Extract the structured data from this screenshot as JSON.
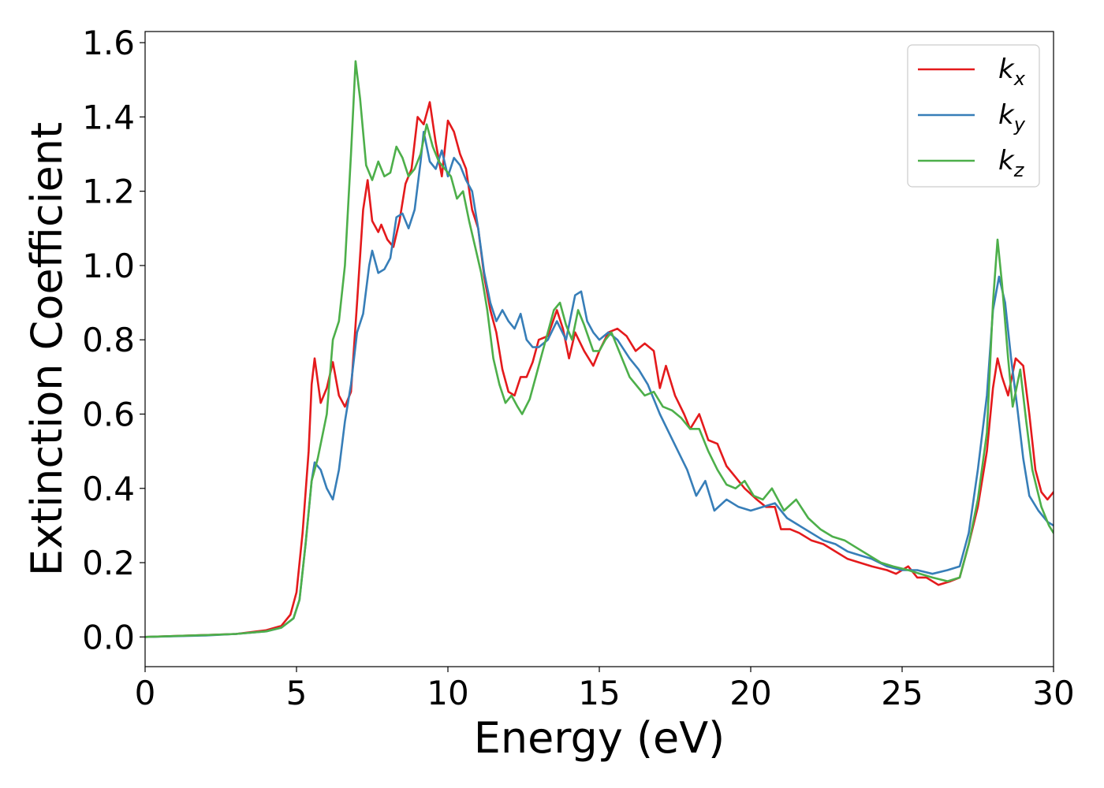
{
  "chart_data": {
    "type": "line",
    "xlabel": "Energy (eV)",
    "ylabel": "Extinction Coefficient",
    "xlim": [
      0,
      30
    ],
    "ylim": [
      -0.08,
      1.63
    ],
    "xticks": [
      0,
      5,
      10,
      15,
      20,
      25,
      30
    ],
    "xtick_labels": [
      "0",
      "5",
      "10",
      "15",
      "20",
      "25",
      "30"
    ],
    "yticks": [
      0.0,
      0.2,
      0.4,
      0.6,
      0.8,
      1.0,
      1.2,
      1.4,
      1.6
    ],
    "ytick_labels": [
      "0.0",
      "0.2",
      "0.4",
      "0.6",
      "0.8",
      "1.0",
      "1.2",
      "1.4",
      "1.6"
    ],
    "grid": false,
    "legend_position": "top-right",
    "series": [
      {
        "name": "k",
        "subscript": "x",
        "color": "#e41a1c",
        "points": [
          [
            0,
            0
          ],
          [
            2,
            0.005
          ],
          [
            3,
            0.008
          ],
          [
            4,
            0.018
          ],
          [
            4.5,
            0.03
          ],
          [
            4.8,
            0.06
          ],
          [
            5.0,
            0.12
          ],
          [
            5.2,
            0.28
          ],
          [
            5.4,
            0.5
          ],
          [
            5.5,
            0.68
          ],
          [
            5.6,
            0.75
          ],
          [
            5.8,
            0.63
          ],
          [
            6.0,
            0.67
          ],
          [
            6.2,
            0.74
          ],
          [
            6.4,
            0.65
          ],
          [
            6.6,
            0.62
          ],
          [
            6.8,
            0.66
          ],
          [
            7.0,
            0.9
          ],
          [
            7.2,
            1.15
          ],
          [
            7.35,
            1.23
          ],
          [
            7.5,
            1.12
          ],
          [
            7.7,
            1.09
          ],
          [
            7.8,
            1.11
          ],
          [
            8.0,
            1.07
          ],
          [
            8.2,
            1.05
          ],
          [
            8.4,
            1.12
          ],
          [
            8.6,
            1.22
          ],
          [
            8.8,
            1.26
          ],
          [
            9.0,
            1.4
          ],
          [
            9.2,
            1.38
          ],
          [
            9.4,
            1.44
          ],
          [
            9.6,
            1.33
          ],
          [
            9.8,
            1.24
          ],
          [
            10.0,
            1.39
          ],
          [
            10.2,
            1.36
          ],
          [
            10.4,
            1.3
          ],
          [
            10.6,
            1.26
          ],
          [
            10.8,
            1.15
          ],
          [
            11.0,
            1.1
          ],
          [
            11.2,
            0.97
          ],
          [
            11.4,
            0.88
          ],
          [
            11.6,
            0.82
          ],
          [
            11.8,
            0.72
          ],
          [
            12.0,
            0.66
          ],
          [
            12.2,
            0.65
          ],
          [
            12.4,
            0.7
          ],
          [
            12.6,
            0.7
          ],
          [
            12.8,
            0.74
          ],
          [
            13.0,
            0.8
          ],
          [
            13.3,
            0.81
          ],
          [
            13.6,
            0.88
          ],
          [
            13.8,
            0.83
          ],
          [
            14.0,
            0.75
          ],
          [
            14.2,
            0.82
          ],
          [
            14.5,
            0.77
          ],
          [
            14.8,
            0.73
          ],
          [
            15.0,
            0.77
          ],
          [
            15.3,
            0.82
          ],
          [
            15.6,
            0.83
          ],
          [
            15.9,
            0.81
          ],
          [
            16.2,
            0.77
          ],
          [
            16.5,
            0.79
          ],
          [
            16.8,
            0.77
          ],
          [
            17.0,
            0.67
          ],
          [
            17.2,
            0.73
          ],
          [
            17.5,
            0.65
          ],
          [
            17.8,
            0.6
          ],
          [
            18.0,
            0.56
          ],
          [
            18.3,
            0.6
          ],
          [
            18.6,
            0.53
          ],
          [
            18.9,
            0.52
          ],
          [
            19.2,
            0.46
          ],
          [
            19.5,
            0.43
          ],
          [
            19.8,
            0.4
          ],
          [
            20.2,
            0.37
          ],
          [
            20.5,
            0.35
          ],
          [
            20.8,
            0.35
          ],
          [
            21.0,
            0.29
          ],
          [
            21.3,
            0.29
          ],
          [
            21.6,
            0.28
          ],
          [
            22.0,
            0.26
          ],
          [
            22.4,
            0.25
          ],
          [
            22.8,
            0.23
          ],
          [
            23.2,
            0.21
          ],
          [
            23.6,
            0.2
          ],
          [
            24.0,
            0.19
          ],
          [
            24.5,
            0.18
          ],
          [
            24.8,
            0.17
          ],
          [
            25.2,
            0.19
          ],
          [
            25.5,
            0.16
          ],
          [
            25.8,
            0.16
          ],
          [
            26.2,
            0.14
          ],
          [
            26.6,
            0.15
          ],
          [
            26.9,
            0.16
          ],
          [
            27.2,
            0.25
          ],
          [
            27.5,
            0.35
          ],
          [
            27.8,
            0.5
          ],
          [
            28.0,
            0.67
          ],
          [
            28.15,
            0.75
          ],
          [
            28.3,
            0.7
          ],
          [
            28.5,
            0.65
          ],
          [
            28.75,
            0.75
          ],
          [
            29.0,
            0.73
          ],
          [
            29.2,
            0.6
          ],
          [
            29.4,
            0.45
          ],
          [
            29.6,
            0.39
          ],
          [
            29.8,
            0.37
          ],
          [
            30.0,
            0.39
          ]
        ]
      },
      {
        "name": "k",
        "subscript": "y",
        "color": "#377eb8",
        "points": [
          [
            0,
            0
          ],
          [
            2,
            0.004
          ],
          [
            3,
            0.008
          ],
          [
            4,
            0.015
          ],
          [
            4.5,
            0.025
          ],
          [
            4.9,
            0.05
          ],
          [
            5.1,
            0.1
          ],
          [
            5.3,
            0.25
          ],
          [
            5.5,
            0.42
          ],
          [
            5.6,
            0.47
          ],
          [
            5.8,
            0.45
          ],
          [
            6.0,
            0.4
          ],
          [
            6.2,
            0.37
          ],
          [
            6.4,
            0.45
          ],
          [
            6.6,
            0.58
          ],
          [
            6.8,
            0.68
          ],
          [
            7.0,
            0.82
          ],
          [
            7.2,
            0.87
          ],
          [
            7.4,
            1.0
          ],
          [
            7.5,
            1.04
          ],
          [
            7.7,
            0.98
          ],
          [
            7.9,
            0.99
          ],
          [
            8.1,
            1.02
          ],
          [
            8.3,
            1.13
          ],
          [
            8.5,
            1.14
          ],
          [
            8.7,
            1.1
          ],
          [
            8.9,
            1.15
          ],
          [
            9.1,
            1.28
          ],
          [
            9.2,
            1.36
          ],
          [
            9.4,
            1.28
          ],
          [
            9.6,
            1.26
          ],
          [
            9.8,
            1.31
          ],
          [
            10.0,
            1.24
          ],
          [
            10.2,
            1.29
          ],
          [
            10.4,
            1.27
          ],
          [
            10.6,
            1.23
          ],
          [
            10.8,
            1.2
          ],
          [
            11.0,
            1.1
          ],
          [
            11.2,
            0.98
          ],
          [
            11.4,
            0.9
          ],
          [
            11.6,
            0.85
          ],
          [
            11.8,
            0.88
          ],
          [
            12.0,
            0.85
          ],
          [
            12.2,
            0.83
          ],
          [
            12.4,
            0.87
          ],
          [
            12.6,
            0.8
          ],
          [
            12.8,
            0.78
          ],
          [
            13.0,
            0.78
          ],
          [
            13.3,
            0.8
          ],
          [
            13.6,
            0.85
          ],
          [
            13.9,
            0.8
          ],
          [
            14.2,
            0.92
          ],
          [
            14.4,
            0.93
          ],
          [
            14.6,
            0.85
          ],
          [
            14.8,
            0.82
          ],
          [
            15.0,
            0.8
          ],
          [
            15.3,
            0.82
          ],
          [
            15.6,
            0.8
          ],
          [
            16.0,
            0.75
          ],
          [
            16.3,
            0.72
          ],
          [
            16.6,
            0.68
          ],
          [
            16.8,
            0.64
          ],
          [
            17.0,
            0.6
          ],
          [
            17.3,
            0.55
          ],
          [
            17.6,
            0.5
          ],
          [
            17.9,
            0.45
          ],
          [
            18.2,
            0.38
          ],
          [
            18.5,
            0.42
          ],
          [
            18.8,
            0.34
          ],
          [
            19.2,
            0.37
          ],
          [
            19.6,
            0.35
          ],
          [
            20.0,
            0.34
          ],
          [
            20.4,
            0.35
          ],
          [
            20.8,
            0.36
          ],
          [
            21.2,
            0.32
          ],
          [
            21.6,
            0.3
          ],
          [
            22.0,
            0.28
          ],
          [
            22.4,
            0.26
          ],
          [
            22.8,
            0.25
          ],
          [
            23.2,
            0.23
          ],
          [
            23.6,
            0.22
          ],
          [
            24.0,
            0.21
          ],
          [
            24.5,
            0.19
          ],
          [
            25.0,
            0.18
          ],
          [
            25.5,
            0.18
          ],
          [
            26.0,
            0.17
          ],
          [
            26.5,
            0.18
          ],
          [
            26.9,
            0.19
          ],
          [
            27.2,
            0.28
          ],
          [
            27.5,
            0.45
          ],
          [
            27.8,
            0.65
          ],
          [
            28.0,
            0.88
          ],
          [
            28.2,
            0.97
          ],
          [
            28.4,
            0.9
          ],
          [
            28.6,
            0.75
          ],
          [
            28.8,
            0.62
          ],
          [
            29.0,
            0.48
          ],
          [
            29.2,
            0.38
          ],
          [
            29.5,
            0.34
          ],
          [
            29.8,
            0.31
          ],
          [
            30.0,
            0.3
          ]
        ]
      },
      {
        "name": "k",
        "subscript": "z",
        "color": "#4daf4a",
        "points": [
          [
            0,
            0
          ],
          [
            2,
            0.005
          ],
          [
            3,
            0.008
          ],
          [
            4,
            0.015
          ],
          [
            4.5,
            0.025
          ],
          [
            4.9,
            0.05
          ],
          [
            5.1,
            0.1
          ],
          [
            5.3,
            0.25
          ],
          [
            5.5,
            0.42
          ],
          [
            5.7,
            0.48
          ],
          [
            6.0,
            0.6
          ],
          [
            6.2,
            0.8
          ],
          [
            6.4,
            0.85
          ],
          [
            6.6,
            1.0
          ],
          [
            6.8,
            1.3
          ],
          [
            6.95,
            1.55
          ],
          [
            7.1,
            1.45
          ],
          [
            7.3,
            1.27
          ],
          [
            7.5,
            1.23
          ],
          [
            7.7,
            1.28
          ],
          [
            7.9,
            1.24
          ],
          [
            8.1,
            1.25
          ],
          [
            8.3,
            1.32
          ],
          [
            8.5,
            1.29
          ],
          [
            8.7,
            1.24
          ],
          [
            8.9,
            1.26
          ],
          [
            9.1,
            1.3
          ],
          [
            9.3,
            1.38
          ],
          [
            9.5,
            1.32
          ],
          [
            9.7,
            1.28
          ],
          [
            9.9,
            1.26
          ],
          [
            10.1,
            1.24
          ],
          [
            10.3,
            1.18
          ],
          [
            10.5,
            1.2
          ],
          [
            10.7,
            1.12
          ],
          [
            10.9,
            1.05
          ],
          [
            11.1,
            0.98
          ],
          [
            11.3,
            0.88
          ],
          [
            11.5,
            0.75
          ],
          [
            11.7,
            0.68
          ],
          [
            11.9,
            0.63
          ],
          [
            12.1,
            0.65
          ],
          [
            12.3,
            0.62
          ],
          [
            12.45,
            0.6
          ],
          [
            12.7,
            0.64
          ],
          [
            12.9,
            0.7
          ],
          [
            13.1,
            0.76
          ],
          [
            13.3,
            0.82
          ],
          [
            13.5,
            0.88
          ],
          [
            13.7,
            0.9
          ],
          [
            13.9,
            0.84
          ],
          [
            14.1,
            0.8
          ],
          [
            14.3,
            0.88
          ],
          [
            14.5,
            0.84
          ],
          [
            14.8,
            0.77
          ],
          [
            15.0,
            0.77
          ],
          [
            15.2,
            0.8
          ],
          [
            15.4,
            0.82
          ],
          [
            15.6,
            0.78
          ],
          [
            15.8,
            0.74
          ],
          [
            16.0,
            0.7
          ],
          [
            16.3,
            0.67
          ],
          [
            16.5,
            0.65
          ],
          [
            16.8,
            0.66
          ],
          [
            17.1,
            0.62
          ],
          [
            17.4,
            0.61
          ],
          [
            17.7,
            0.59
          ],
          [
            18.0,
            0.56
          ],
          [
            18.3,
            0.56
          ],
          [
            18.6,
            0.5
          ],
          [
            18.9,
            0.45
          ],
          [
            19.2,
            0.41
          ],
          [
            19.5,
            0.4
          ],
          [
            19.8,
            0.42
          ],
          [
            20.1,
            0.38
          ],
          [
            20.4,
            0.37
          ],
          [
            20.7,
            0.4
          ],
          [
            21.1,
            0.34
          ],
          [
            21.5,
            0.37
          ],
          [
            21.9,
            0.32
          ],
          [
            22.3,
            0.29
          ],
          [
            22.7,
            0.27
          ],
          [
            23.1,
            0.26
          ],
          [
            23.5,
            0.24
          ],
          [
            23.9,
            0.22
          ],
          [
            24.3,
            0.2
          ],
          [
            24.7,
            0.19
          ],
          [
            25.2,
            0.18
          ],
          [
            25.6,
            0.17
          ],
          [
            26.0,
            0.16
          ],
          [
            26.5,
            0.15
          ],
          [
            26.9,
            0.16
          ],
          [
            27.2,
            0.25
          ],
          [
            27.5,
            0.37
          ],
          [
            27.8,
            0.55
          ],
          [
            28.0,
            0.9
          ],
          [
            28.15,
            1.07
          ],
          [
            28.3,
            0.95
          ],
          [
            28.5,
            0.75
          ],
          [
            28.65,
            0.62
          ],
          [
            28.9,
            0.72
          ],
          [
            29.1,
            0.58
          ],
          [
            29.3,
            0.45
          ],
          [
            29.6,
            0.35
          ],
          [
            29.85,
            0.3
          ],
          [
            30.0,
            0.28
          ]
        ]
      }
    ]
  }
}
